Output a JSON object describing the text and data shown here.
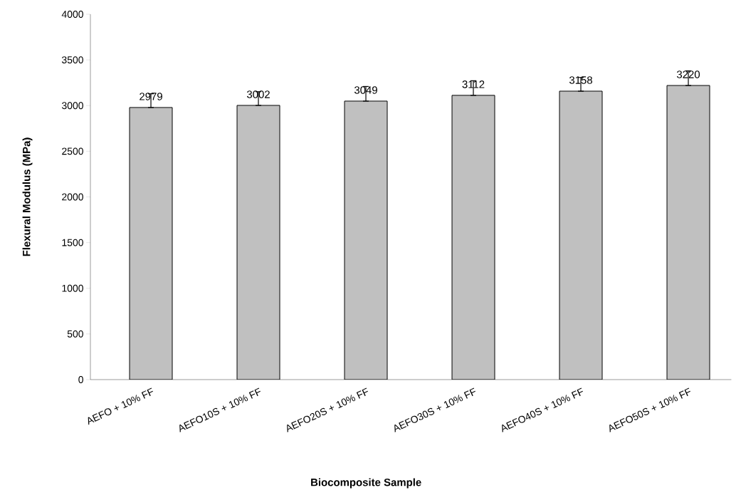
{
  "chart_data": {
    "type": "bar",
    "xlabel": "Biocomposite Sample",
    "ylabel": "Flexural Modulus (MPa)",
    "categories": [
      "AEFO + 10% FF",
      "AEFO10S + 10% FF",
      "AEFO20S + 10% FF",
      "AEFO30S + 10% FF",
      "AEFO40S + 10% FF",
      "AEFO50S + 10% FF"
    ],
    "values": [
      2979,
      3002,
      3049,
      3112,
      3158,
      3220
    ],
    "errors": [
      [
        2979,
        3129
      ],
      [
        3002,
        3152
      ],
      [
        3049,
        3209
      ],
      [
        3112,
        3272
      ],
      [
        3158,
        3308
      ],
      [
        3220,
        3380
      ]
    ],
    "color": "#c0c0c0",
    "data_labels": true,
    "ylim": [
      0,
      4000
    ],
    "yticks": [
      0,
      500,
      1000,
      1500,
      2000,
      2500,
      3000,
      3500,
      4000
    ],
    "grid": false
  }
}
